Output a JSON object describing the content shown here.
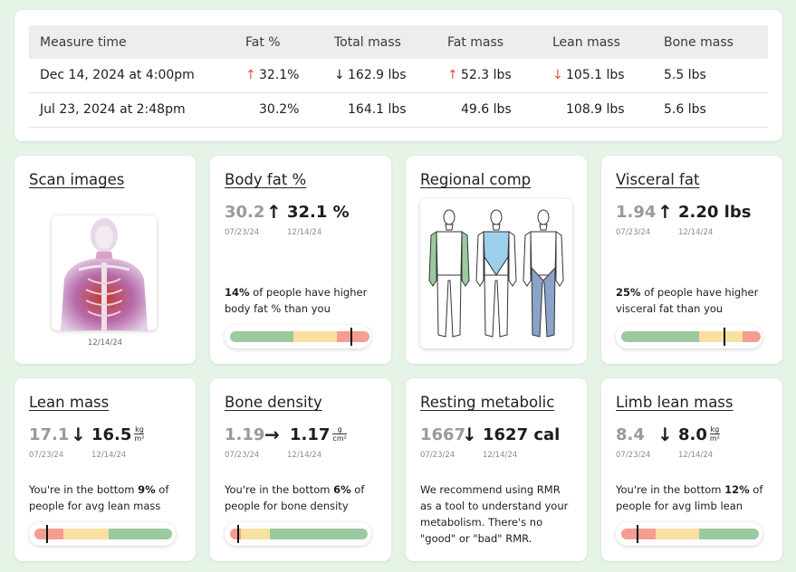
{
  "table": {
    "headers": [
      "Measure time",
      "Fat %",
      "Total mass",
      "Fat mass",
      "Lean mass",
      "Bone mass"
    ],
    "rows": [
      {
        "time": "Dec 14, 2024 at 4:00pm",
        "fat_pct": "32.1%",
        "fat_pct_dir": "up",
        "total": "162.9 lbs",
        "total_dir": "down",
        "fat_mass": "52.3 lbs",
        "fat_mass_dir": "up",
        "lean": "105.1 lbs",
        "lean_dir": "down",
        "bone": "5.5 lbs"
      },
      {
        "time": "Jul 23, 2024 at 2:48pm",
        "fat_pct": "30.2%",
        "total": "164.1 lbs",
        "fat_mass": "49.6 lbs",
        "lean": "108.9 lbs",
        "bone": "5.6 lbs"
      }
    ]
  },
  "scan": {
    "title": "Scan images",
    "date": "12/14/24"
  },
  "body_fat": {
    "title": "Body fat %",
    "old": "30.2",
    "new": "32.1 %",
    "old_date": "07/23/24",
    "new_date": "12/14/24",
    "desc_bold": "14%",
    "desc": " of people have higher body fat % than you",
    "level": 0.88
  },
  "regional": {
    "title": "Regional comp"
  },
  "visceral": {
    "title": "Visceral fat",
    "old": "1.94",
    "new": "2.20 lbs",
    "old_date": "07/23/24",
    "new_date": "12/14/24",
    "desc_bold": "25%",
    "desc": " of people have higher visceral fat than you",
    "level": 0.75
  },
  "lean_mass": {
    "title": "Lean mass",
    "old": "17.1",
    "new": "16.5",
    "unit_top": "kg",
    "unit_bot": "m²",
    "old_date": "07/23/24",
    "new_date": "12/14/24",
    "desc_pre": "You're in the bottom ",
    "desc_bold": "9%",
    "desc": " of people for avg lean mass",
    "level": 0.09
  },
  "bone_density": {
    "title": "Bone density",
    "old": "1.19",
    "new": "1.17",
    "unit_top": "g",
    "unit_bot": "cm²",
    "old_date": "07/23/24",
    "new_date": "12/14/24",
    "desc_pre": "You're in the bottom ",
    "desc_bold": "6%",
    "desc": " of people for bone density",
    "level": 0.06
  },
  "rmr": {
    "title": "Resting metabolic",
    "old": "1667",
    "new": "1627 cal",
    "old_date": "07/23/24",
    "new_date": "12/14/24",
    "desc": "We recommend using RMR as a tool to understand your metabolism. There's no \"good\" or \"bad\" RMR."
  },
  "limb_lean": {
    "title": "Limb lean mass",
    "old": "8.4",
    "new": "8.0",
    "unit_top": "kg",
    "unit_bot": "m²",
    "old_date": "07/23/24",
    "new_date": "12/14/24",
    "desc_pre": "You're in the bottom ",
    "desc_bold": "12%",
    "desc": " of people for avg limb lean",
    "level": 0.12
  },
  "arrows": {
    "up": "↑",
    "down": "↓",
    "right": "→"
  },
  "colors": {
    "green": "#9ccaa0",
    "yellow": "#f8e0a0",
    "red": "#f59d90",
    "lean_region": "#9ccaa0",
    "trunk_region": "#9cd0ec",
    "leg_region": "#8aa3c9"
  }
}
